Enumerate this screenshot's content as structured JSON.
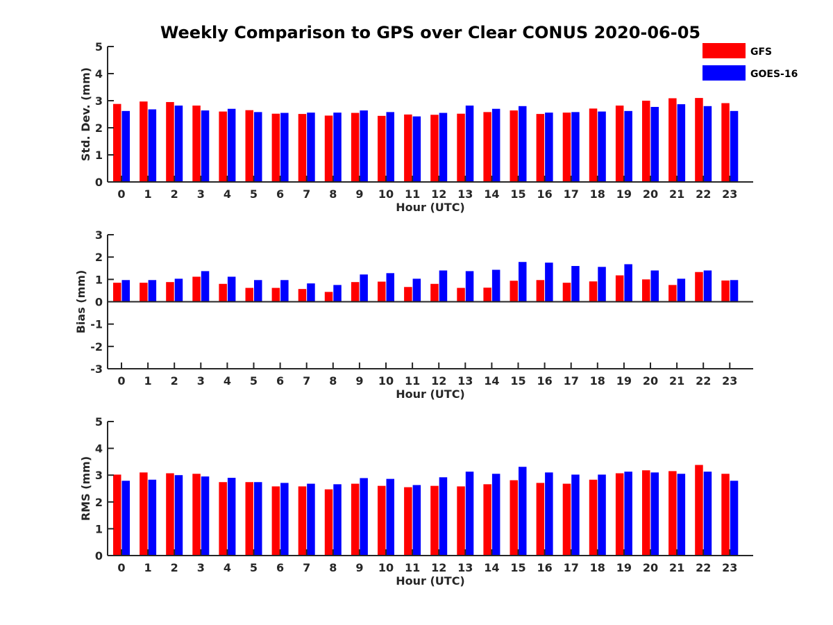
{
  "figure": {
    "title": "Weekly Comparison to GPS over Clear CONUS 2020-06-05",
    "legend": {
      "placement": "top-right",
      "entries": [
        {
          "label": "GFS",
          "color": "#ff0000"
        },
        {
          "label": "GOES-16",
          "color": "#0000ff"
        }
      ]
    }
  },
  "chart_data": [
    {
      "type": "bar",
      "title": "Weekly Comparison to GPS over Clear CONUS 2020-06-05",
      "xlabel": "Hour (UTC)",
      "ylabel": "Std. Dev. (mm)",
      "ylim": [
        0,
        5
      ],
      "yticks": [
        0,
        1,
        2,
        3,
        4,
        5
      ],
      "grid": false,
      "categories": [
        "0",
        "1",
        "2",
        "3",
        "4",
        "5",
        "6",
        "7",
        "8",
        "9",
        "10",
        "11",
        "12",
        "13",
        "14",
        "15",
        "16",
        "17",
        "18",
        "19",
        "20",
        "21",
        "22",
        "23"
      ],
      "series": [
        {
          "name": "GFS",
          "color": "#ff0000",
          "values": [
            2.88,
            2.97,
            2.95,
            2.82,
            2.6,
            2.65,
            2.52,
            2.51,
            2.45,
            2.55,
            2.44,
            2.49,
            2.48,
            2.52,
            2.58,
            2.64,
            2.51,
            2.56,
            2.71,
            2.82,
            3.0,
            3.09,
            3.1,
            2.91
          ]
        },
        {
          "name": "GOES-16",
          "color": "#0000ff",
          "values": [
            2.62,
            2.68,
            2.82,
            2.64,
            2.7,
            2.58,
            2.55,
            2.56,
            2.56,
            2.64,
            2.58,
            2.42,
            2.55,
            2.82,
            2.7,
            2.8,
            2.56,
            2.58,
            2.6,
            2.62,
            2.77,
            2.87,
            2.8,
            2.62
          ]
        }
      ]
    },
    {
      "type": "bar",
      "xlabel": "Hour (UTC)",
      "ylabel": "Bias (mm)",
      "ylim": [
        -3,
        3
      ],
      "yticks": [
        -3,
        -2,
        -1,
        0,
        1,
        2,
        3
      ],
      "grid": false,
      "categories": [
        "0",
        "1",
        "2",
        "3",
        "4",
        "5",
        "6",
        "7",
        "8",
        "9",
        "10",
        "11",
        "12",
        "13",
        "14",
        "15",
        "16",
        "17",
        "18",
        "19",
        "20",
        "21",
        "22",
        "23"
      ],
      "series": [
        {
          "name": "GFS",
          "color": "#ff0000",
          "values": [
            0.85,
            0.85,
            0.88,
            1.12,
            0.8,
            0.62,
            0.62,
            0.57,
            0.44,
            0.88,
            0.9,
            0.66,
            0.8,
            0.62,
            0.63,
            0.94,
            0.97,
            0.85,
            0.91,
            1.18,
            1.0,
            0.75,
            1.33,
            0.95
          ]
        },
        {
          "name": "GOES-16",
          "color": "#0000ff",
          "values": [
            0.97,
            0.97,
            1.03,
            1.37,
            1.12,
            0.97,
            0.97,
            0.82,
            0.75,
            1.22,
            1.28,
            1.03,
            1.4,
            1.37,
            1.43,
            1.78,
            1.75,
            1.6,
            1.56,
            1.68,
            1.4,
            1.03,
            1.4,
            0.97
          ]
        }
      ]
    },
    {
      "type": "bar",
      "xlabel": "Hour (UTC)",
      "ylabel": "RMS (mm)",
      "ylim": [
        0,
        5
      ],
      "yticks": [
        0,
        1,
        2,
        3,
        4,
        5
      ],
      "grid": false,
      "categories": [
        "0",
        "1",
        "2",
        "3",
        "4",
        "5",
        "6",
        "7",
        "8",
        "9",
        "10",
        "11",
        "12",
        "13",
        "14",
        "15",
        "16",
        "17",
        "18",
        "19",
        "20",
        "21",
        "22",
        "23"
      ],
      "series": [
        {
          "name": "GFS",
          "color": "#ff0000",
          "values": [
            3.02,
            3.1,
            3.07,
            3.05,
            2.74,
            2.74,
            2.58,
            2.58,
            2.47,
            2.68,
            2.6,
            2.55,
            2.6,
            2.58,
            2.66,
            2.81,
            2.71,
            2.68,
            2.83,
            3.07,
            3.18,
            3.15,
            3.38,
            3.05
          ]
        },
        {
          "name": "GOES-16",
          "color": "#0000ff",
          "values": [
            2.79,
            2.83,
            3.0,
            2.95,
            2.9,
            2.74,
            2.71,
            2.68,
            2.66,
            2.89,
            2.86,
            2.63,
            2.92,
            3.13,
            3.05,
            3.31,
            3.1,
            3.02,
            3.02,
            3.13,
            3.1,
            3.05,
            3.13,
            2.79
          ]
        }
      ]
    }
  ]
}
